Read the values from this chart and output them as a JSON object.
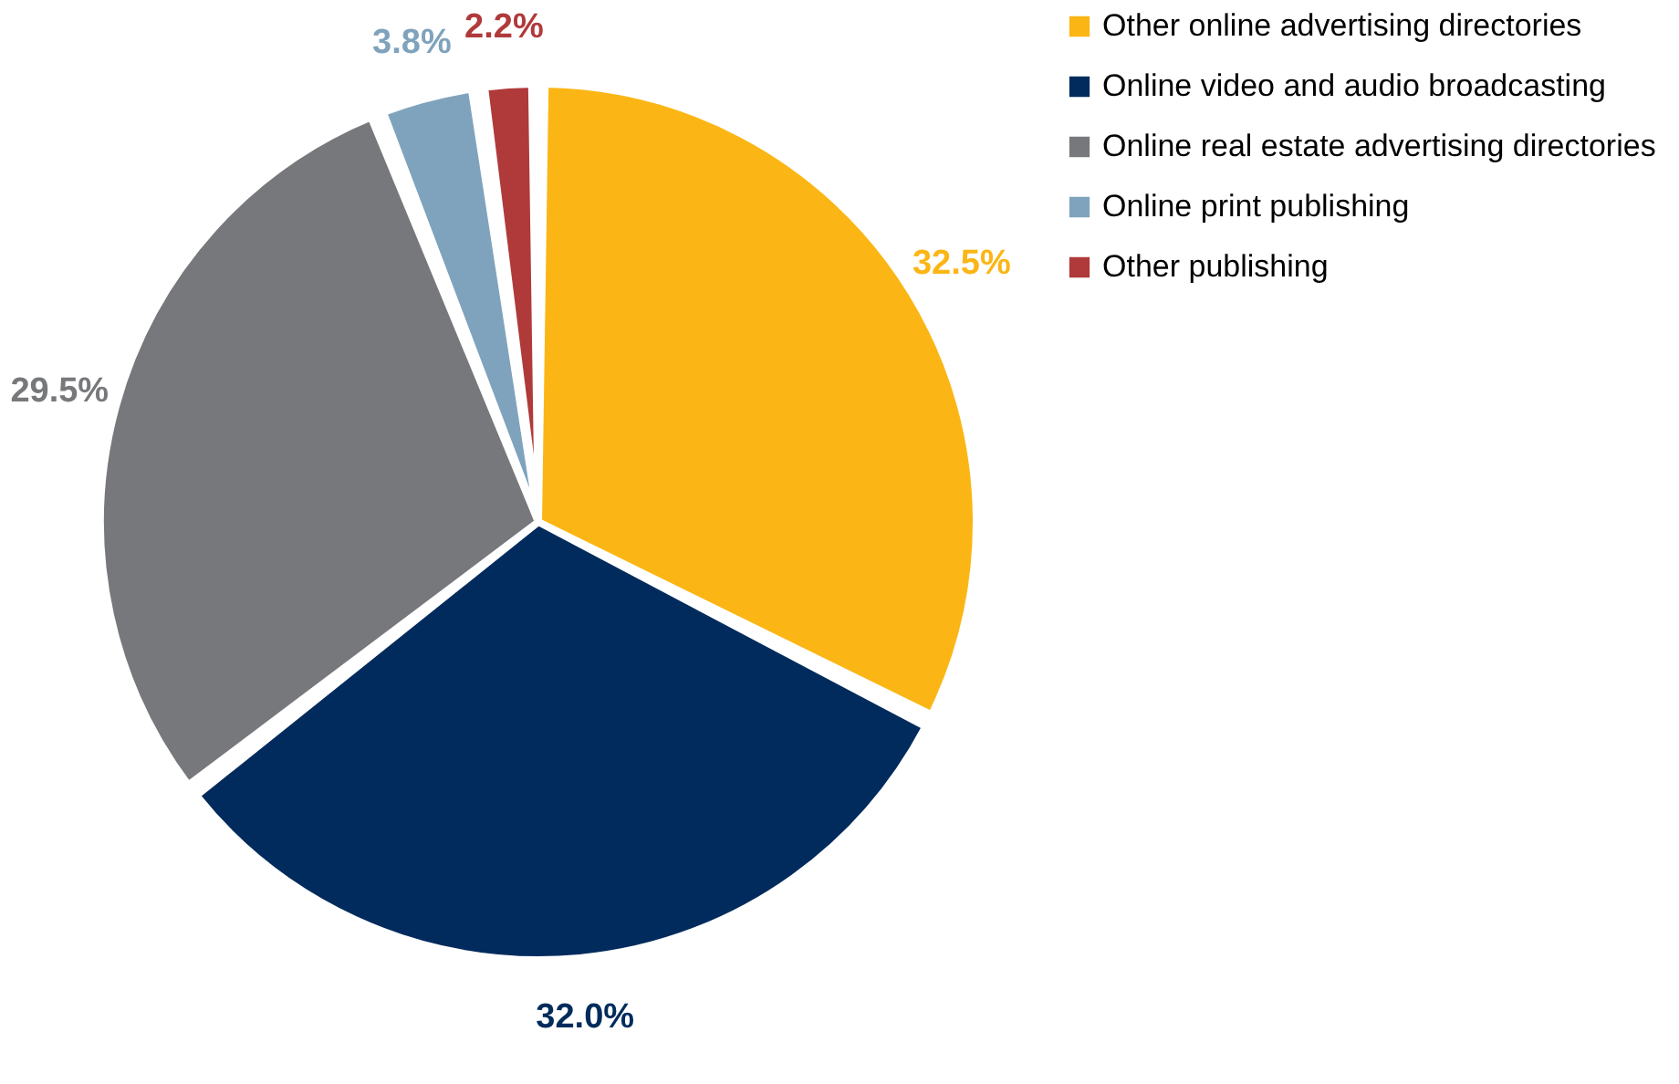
{
  "chart_data": {
    "type": "pie",
    "categories": [
      "Other online advertising directories",
      "Online video and audio broadcasting",
      "Online real estate advertising directories",
      "Online print publishing",
      "Other publishing"
    ],
    "values": [
      32.5,
      32.0,
      29.5,
      3.8,
      2.2
    ],
    "colors": [
      "#fbb615",
      "#002b5c",
      "#77787b",
      "#7fa3bd",
      "#b03a3a"
    ],
    "value_labels": [
      "32.5%",
      "32.0%",
      "29.5%",
      "3.8%",
      "2.2%"
    ],
    "legend": "right"
  }
}
